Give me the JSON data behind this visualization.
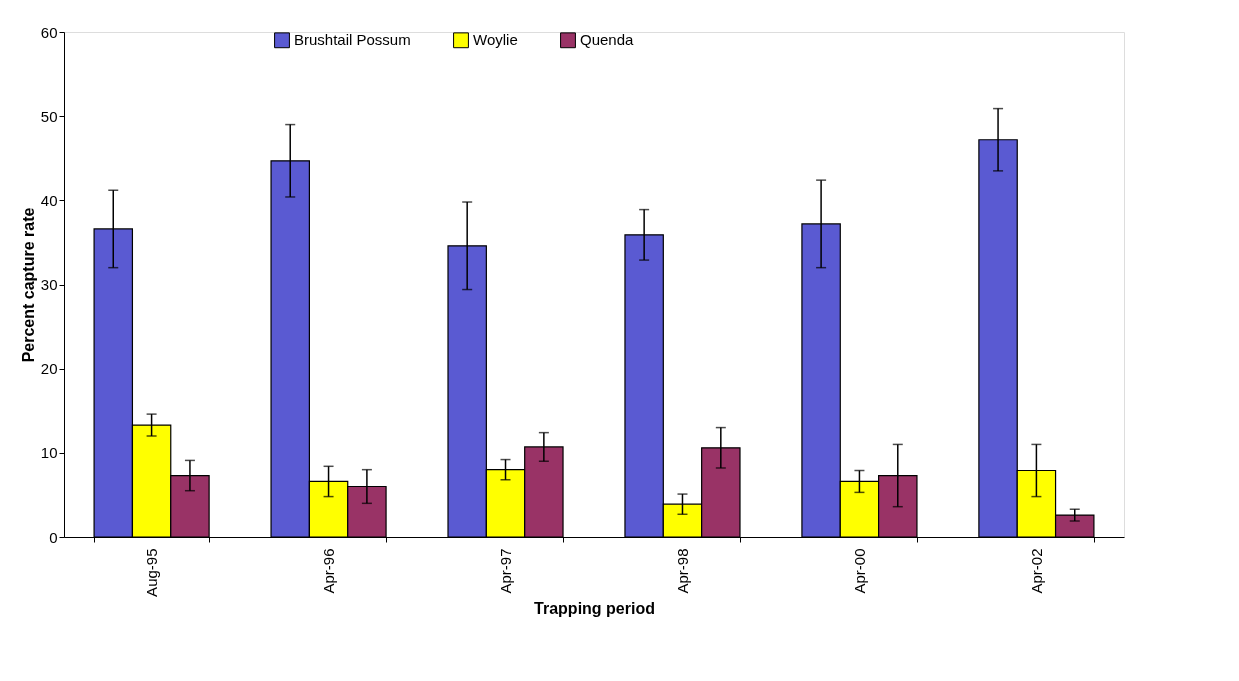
{
  "chart_data": {
    "type": "bar",
    "xlabel": "Trapping period",
    "ylabel": "Percent capture rate",
    "categories": [
      "Aug-95",
      "Apr-96",
      "Apr-97",
      "Apr-98",
      "Apr-00",
      "Apr-02"
    ],
    "series": [
      {
        "name": "Brushtail Possum",
        "color": "#5a5ad2",
        "values": [
          36.6,
          44.7,
          34.6,
          35.9,
          37.2,
          47.2
        ],
        "errors": [
          4.6,
          4.3,
          5.2,
          3.0,
          5.2,
          3.7
        ]
      },
      {
        "name": "Woylie",
        "color": "#ffff00",
        "values": [
          13.3,
          6.6,
          8.0,
          3.9,
          6.6,
          7.9
        ],
        "errors": [
          1.3,
          1.8,
          1.2,
          1.2,
          1.3,
          3.1
        ]
      },
      {
        "name": "Quenda",
        "color": "#993366",
        "values": [
          7.3,
          6.0,
          10.7,
          10.6,
          7.3,
          2.6
        ],
        "errors": [
          1.8,
          2.0,
          1.7,
          2.4,
          3.7,
          0.7
        ]
      }
    ],
    "ylim": [
      0,
      60
    ],
    "yticks": [
      0,
      10,
      20,
      30,
      40,
      50,
      60
    ],
    "grid": false,
    "legend": "top"
  }
}
